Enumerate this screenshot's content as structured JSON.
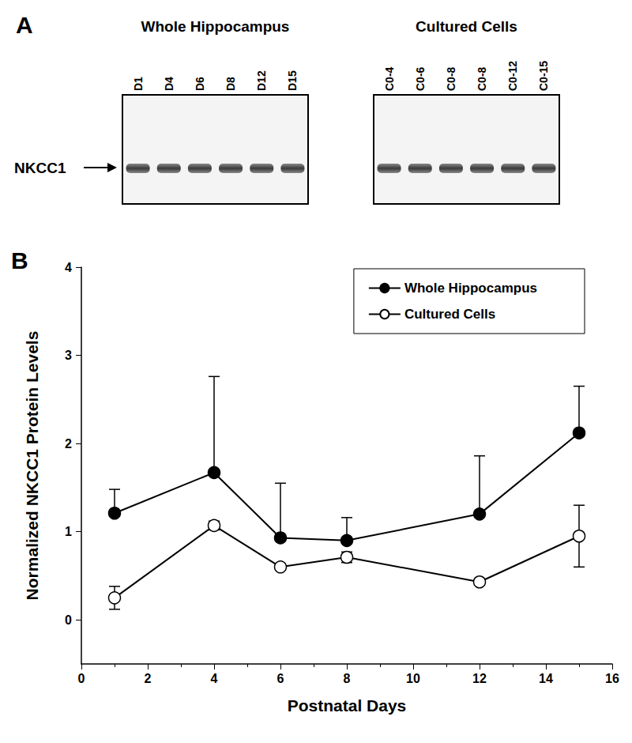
{
  "panel_a": {
    "label": "A",
    "band_label": "NKCC1",
    "blots": [
      {
        "title": "Whole Hippocampus",
        "lanes": [
          "D1",
          "D4",
          "D6",
          "D8",
          "D12",
          "D15"
        ]
      },
      {
        "title": "Cultured Cells",
        "lanes": [
          "C0-4",
          "C0-6",
          "C0-8",
          "C0-8",
          "C0-12",
          "C0-15"
        ]
      }
    ]
  },
  "panel_b": {
    "label": "B"
  },
  "chart_data": {
    "type": "line",
    "x_label": "Postnatal Days",
    "y_label": "Normalized NKCC1 Protein Levels",
    "x": [
      1,
      4,
      6,
      8,
      12,
      15
    ],
    "series": [
      {
        "name": "Whole Hippocampus",
        "color": "#000000",
        "marker": "filled_circle",
        "values": [
          1.21,
          1.67,
          0.93,
          0.9,
          1.2,
          2.12
        ],
        "errors_upper": [
          0.27,
          1.09,
          0.62,
          0.26,
          0.66,
          0.53
        ]
      },
      {
        "name": "Cultured Cells",
        "color": "#000000",
        "marker": "open_circle",
        "values": [
          0.25,
          1.07,
          0.6,
          0.71,
          0.43,
          0.95
        ],
        "errors_upper": [
          0.13,
          0.05,
          0.03,
          0.06,
          0.02,
          0.35
        ],
        "errors_lower": [
          0.13,
          0.05,
          0.03,
          0.06,
          0.02,
          0.35
        ]
      }
    ],
    "xlim": [
      0,
      16
    ],
    "xticks": [
      0,
      2,
      4,
      6,
      8,
      10,
      12,
      14,
      16
    ],
    "ylim": [
      -0.5,
      4
    ],
    "yticks": [
      0,
      1,
      2,
      3,
      4
    ],
    "grid": false,
    "legend": "upper right"
  }
}
